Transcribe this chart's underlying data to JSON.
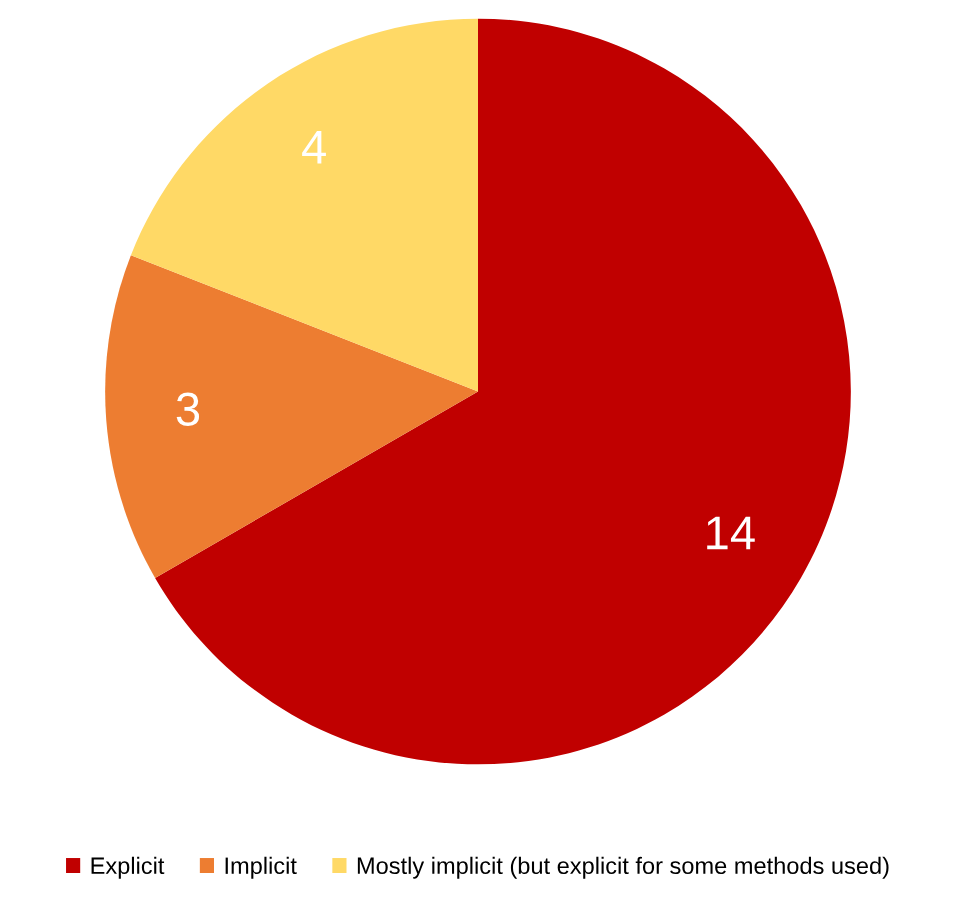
{
  "chart_data": {
    "type": "pie",
    "categories": [
      "Explicit",
      "Implicit",
      "Mostly implicit (but explicit for some methods used)"
    ],
    "values": [
      14,
      3,
      4
    ],
    "colors": [
      "#c00000",
      "#ed7d31",
      "#ffd966"
    ],
    "data_labels": true,
    "legend": "bottom"
  }
}
